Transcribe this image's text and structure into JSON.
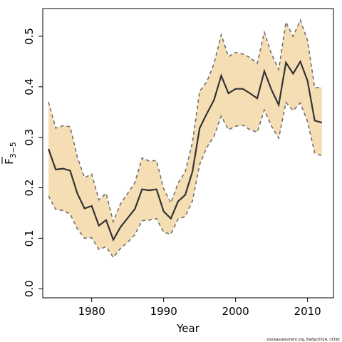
{
  "chart_data": {
    "type": "line",
    "xlabel": "Year",
    "ylabel": "F",
    "ylabel_subscript": "3−5",
    "xlim": [
      1973.2,
      2013.6
    ],
    "ylim": [
      -0.018,
      0.555
    ],
    "x_ticks": [
      1980,
      1990,
      2000,
      2010
    ],
    "x_tick_labels": [
      "1980",
      "1990",
      "2000",
      "2010"
    ],
    "y_ticks": [
      0.0,
      0.1,
      0.2,
      0.3,
      0.4,
      0.5
    ],
    "y_tick_labels": [
      "0.0",
      "0.1",
      "0.2",
      "0.3",
      "0.4",
      "0.5"
    ],
    "grid": false,
    "credit": "stockassessment.org, BalSpr2014, r3292",
    "colors": {
      "band": "#f5deb3",
      "estimate": "#333333",
      "bounds": "#707070"
    },
    "x": [
      1974,
      1975,
      1976,
      1977,
      1978,
      1979,
      1980,
      1981,
      1982,
      1983,
      1984,
      1985,
      1986,
      1987,
      1988,
      1989,
      1990,
      1991,
      1992,
      1993,
      1994,
      1995,
      1996,
      1997,
      1998,
      1999,
      2000,
      2001,
      2002,
      2003,
      2004,
      2005,
      2006,
      2007,
      2008,
      2009,
      2010,
      2011,
      2012
    ],
    "series": [
      {
        "role": "estimate",
        "values": [
          0.277,
          0.236,
          0.238,
          0.234,
          0.189,
          0.159,
          0.164,
          0.125,
          0.136,
          0.097,
          0.122,
          0.14,
          0.158,
          0.197,
          0.195,
          0.197,
          0.153,
          0.139,
          0.173,
          0.186,
          0.232,
          0.318,
          0.347,
          0.374,
          0.422,
          0.387,
          0.396,
          0.396,
          0.387,
          0.377,
          0.431,
          0.394,
          0.364,
          0.448,
          0.426,
          0.45,
          0.412,
          0.333,
          0.329
        ]
      },
      {
        "role": "upper",
        "values": [
          0.37,
          0.318,
          0.323,
          0.321,
          0.261,
          0.22,
          0.227,
          0.176,
          0.189,
          0.133,
          0.168,
          0.189,
          0.21,
          0.259,
          0.253,
          0.254,
          0.198,
          0.17,
          0.209,
          0.232,
          0.29,
          0.391,
          0.41,
          0.446,
          0.503,
          0.46,
          0.468,
          0.465,
          0.458,
          0.446,
          0.508,
          0.465,
          0.434,
          0.528,
          0.5,
          0.532,
          0.492,
          0.398,
          0.399
        ]
      },
      {
        "role": "lower",
        "values": [
          0.184,
          0.157,
          0.155,
          0.148,
          0.119,
          0.1,
          0.101,
          0.078,
          0.083,
          0.062,
          0.08,
          0.092,
          0.107,
          0.135,
          0.136,
          0.139,
          0.112,
          0.108,
          0.138,
          0.143,
          0.174,
          0.246,
          0.28,
          0.302,
          0.342,
          0.315,
          0.322,
          0.324,
          0.315,
          0.31,
          0.354,
          0.322,
          0.298,
          0.369,
          0.353,
          0.368,
          0.331,
          0.269,
          0.263
        ]
      }
    ]
  }
}
